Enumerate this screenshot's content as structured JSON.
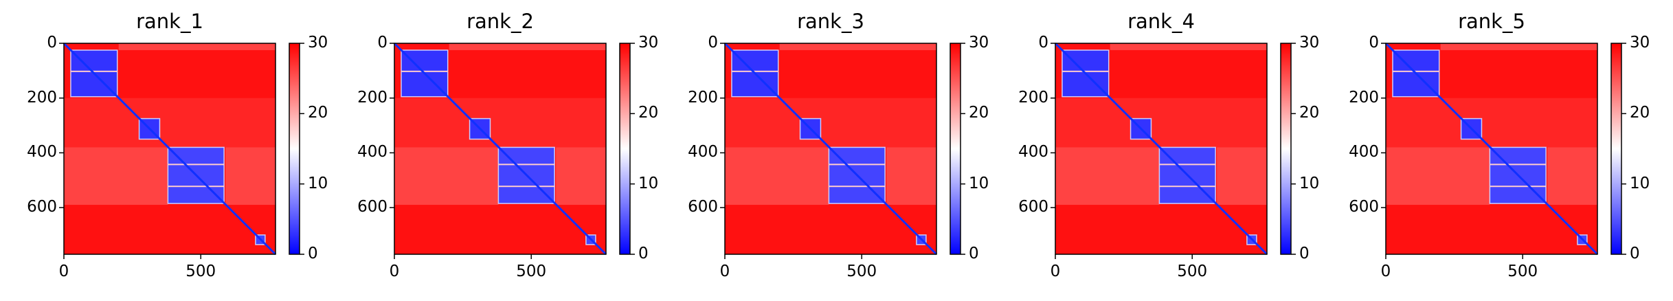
{
  "chart_data": [
    {
      "type": "heatmap",
      "title": "rank_1",
      "xlabel": "",
      "ylabel": "",
      "xlim": [
        0,
        773
      ],
      "ylim": [
        773,
        0
      ],
      "xticks": [
        0,
        500
      ],
      "yticks": [
        0,
        200,
        400,
        600
      ],
      "colorbar": {
        "cmap": "bwr",
        "vmin": 0,
        "vmax": 30,
        "ticks": [
          0,
          10,
          20,
          30
        ]
      },
      "description": "Predicted aligned error / distance matrix; low values (blue) along diagonal and in domain blocks, high values (red) elsewhere",
      "domain_blocks": [
        {
          "start": 25,
          "end": 195,
          "value": 3
        },
        {
          "start": 275,
          "end": 350,
          "value": 3
        },
        {
          "start": 380,
          "end": 585,
          "value": 4
        },
        {
          "start": 700,
          "end": 735,
          "value": 4
        }
      ],
      "background_value": 29
    },
    {
      "type": "heatmap",
      "title": "rank_2",
      "xlim": [
        0,
        773
      ],
      "ylim": [
        773,
        0
      ],
      "xticks": [
        0,
        500
      ],
      "yticks": [
        0,
        200,
        400,
        600
      ],
      "colorbar": {
        "cmap": "bwr",
        "vmin": 0,
        "vmax": 30,
        "ticks": [
          0,
          10,
          20,
          30
        ]
      },
      "domain_blocks": [
        {
          "start": 25,
          "end": 195,
          "value": 3
        },
        {
          "start": 275,
          "end": 350,
          "value": 3
        },
        {
          "start": 380,
          "end": 585,
          "value": 4
        },
        {
          "start": 700,
          "end": 735,
          "value": 4
        }
      ],
      "background_value": 29
    },
    {
      "type": "heatmap",
      "title": "rank_3",
      "xlim": [
        0,
        773
      ],
      "ylim": [
        773,
        0
      ],
      "xticks": [
        0,
        500
      ],
      "yticks": [
        0,
        200,
        400,
        600
      ],
      "colorbar": {
        "cmap": "bwr",
        "vmin": 0,
        "vmax": 30,
        "ticks": [
          0,
          10,
          20,
          30
        ]
      },
      "domain_blocks": [
        {
          "start": 25,
          "end": 195,
          "value": 3
        },
        {
          "start": 275,
          "end": 350,
          "value": 3
        },
        {
          "start": 380,
          "end": 585,
          "value": 4
        },
        {
          "start": 700,
          "end": 735,
          "value": 4
        }
      ],
      "background_value": 29
    },
    {
      "type": "heatmap",
      "title": "rank_4",
      "xlim": [
        0,
        773
      ],
      "ylim": [
        773,
        0
      ],
      "xticks": [
        0,
        500
      ],
      "yticks": [
        0,
        200,
        400,
        600
      ],
      "colorbar": {
        "cmap": "bwr",
        "vmin": 0,
        "vmax": 30,
        "ticks": [
          0,
          10,
          20,
          30
        ]
      },
      "domain_blocks": [
        {
          "start": 25,
          "end": 195,
          "value": 3
        },
        {
          "start": 275,
          "end": 350,
          "value": 3
        },
        {
          "start": 380,
          "end": 585,
          "value": 4
        },
        {
          "start": 700,
          "end": 735,
          "value": 4
        }
      ],
      "background_value": 29
    },
    {
      "type": "heatmap",
      "title": "rank_5",
      "xlim": [
        0,
        773
      ],
      "ylim": [
        773,
        0
      ],
      "xticks": [
        0,
        500
      ],
      "yticks": [
        0,
        200,
        400,
        600
      ],
      "colorbar": {
        "cmap": "bwr",
        "vmin": 0,
        "vmax": 30,
        "ticks": [
          0,
          10,
          20,
          30
        ]
      },
      "domain_blocks": [
        {
          "start": 25,
          "end": 195,
          "value": 3
        },
        {
          "start": 275,
          "end": 350,
          "value": 3
        },
        {
          "start": 380,
          "end": 585,
          "value": 4
        },
        {
          "start": 700,
          "end": 735,
          "value": 4
        }
      ],
      "background_value": 29
    }
  ],
  "panels": [
    {
      "title": "rank_1"
    },
    {
      "title": "rank_2"
    },
    {
      "title": "rank_3"
    },
    {
      "title": "rank_4"
    },
    {
      "title": "rank_5"
    }
  ],
  "axes": {
    "yticks": [
      "0",
      "200",
      "400",
      "600"
    ],
    "xticks": [
      "0",
      "500"
    ],
    "colorbar_ticks": [
      "30",
      "20",
      "10",
      "0"
    ]
  },
  "colors": {
    "low": "#0000ff",
    "mid": "#ffffff",
    "high": "#ff0000"
  }
}
